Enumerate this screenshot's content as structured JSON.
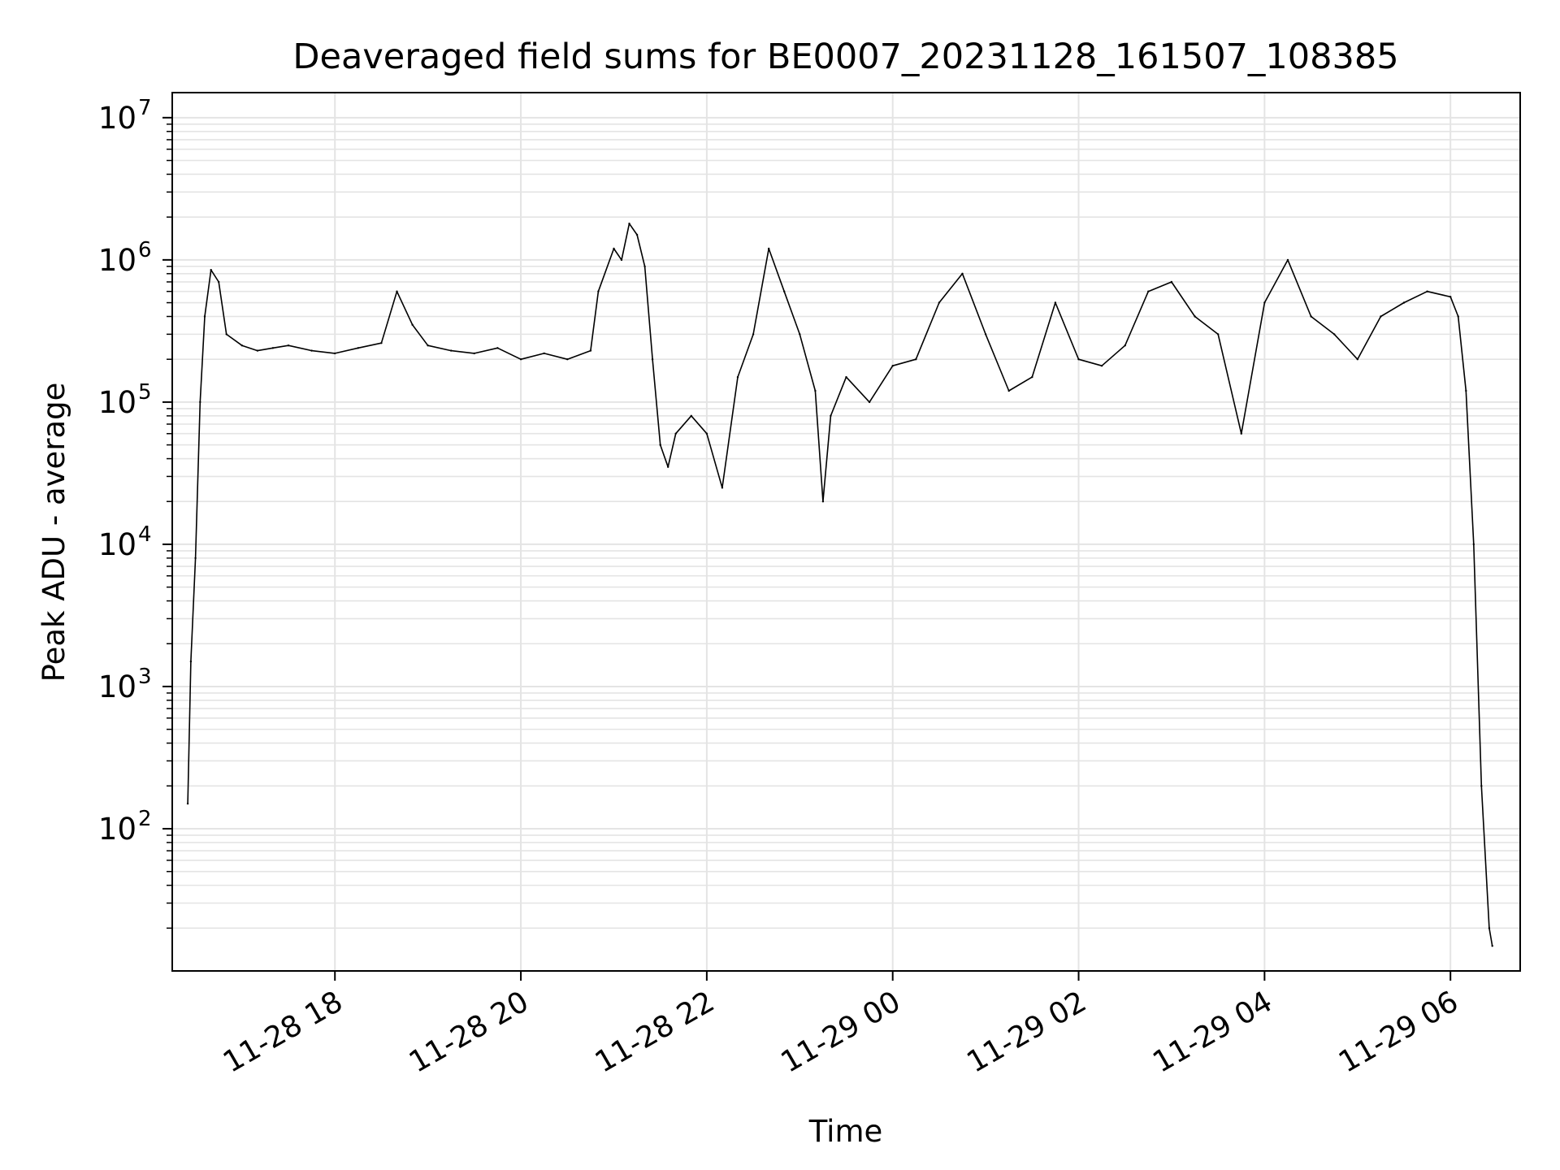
{
  "chart_data": {
    "type": "line",
    "title": "Deaveraged field sums for BE0007_20231128_161507_108385",
    "xlabel": "Time",
    "ylabel": "Peak ADU - average",
    "yscale": "log",
    "ylim": [
      10,
      15000000
    ],
    "xlim": [
      "2023-11-28 16:15",
      "2023-11-29 06:45"
    ],
    "grid": true,
    "line_color": "#000000",
    "grid_color": "#e4e4e4",
    "x_ticks": [
      {
        "x": "2023-11-28 18:00",
        "label": "11-28 18"
      },
      {
        "x": "2023-11-28 20:00",
        "label": "11-28 20"
      },
      {
        "x": "2023-11-28 22:00",
        "label": "11-28 22"
      },
      {
        "x": "2023-11-29 00:00",
        "label": "11-29 00"
      },
      {
        "x": "2023-11-29 02:00",
        "label": "11-29 02"
      },
      {
        "x": "2023-11-29 04:00",
        "label": "11-29 04"
      },
      {
        "x": "2023-11-29 06:00",
        "label": "11-29 06"
      }
    ],
    "y_ticks": [
      {
        "y": 100,
        "base": "10",
        "exp": "2"
      },
      {
        "y": 1000,
        "base": "10",
        "exp": "3"
      },
      {
        "y": 10000,
        "base": "10",
        "exp": "4"
      },
      {
        "y": 100000,
        "base": "10",
        "exp": "5"
      },
      {
        "y": 1000000,
        "base": "10",
        "exp": "6"
      },
      {
        "y": 10000000,
        "base": "10",
        "exp": "7"
      }
    ],
    "series": [
      {
        "x": [
          "2023-11-28 16:25",
          "2023-11-28 16:27",
          "2023-11-28 16:30",
          "2023-11-28 16:33",
          "2023-11-28 16:36",
          "2023-11-28 16:40",
          "2023-11-28 16:45",
          "2023-11-28 16:50",
          "2023-11-28 17:00",
          "2023-11-28 17:10",
          "2023-11-28 17:20",
          "2023-11-28 17:30",
          "2023-11-28 17:45",
          "2023-11-28 18:00",
          "2023-11-28 18:15",
          "2023-11-28 18:30",
          "2023-11-28 18:40",
          "2023-11-28 18:50",
          "2023-11-28 19:00",
          "2023-11-28 19:15",
          "2023-11-28 19:30",
          "2023-11-28 19:45",
          "2023-11-28 20:00",
          "2023-11-28 20:15",
          "2023-11-28 20:30",
          "2023-11-28 20:45",
          "2023-11-28 20:50",
          "2023-11-28 21:00",
          "2023-11-28 21:05",
          "2023-11-28 21:10",
          "2023-11-28 21:15",
          "2023-11-28 21:20",
          "2023-11-28 21:25",
          "2023-11-28 21:30",
          "2023-11-28 21:35",
          "2023-11-28 21:40",
          "2023-11-28 21:50",
          "2023-11-28 22:00",
          "2023-11-28 22:10",
          "2023-11-28 22:20",
          "2023-11-28 22:30",
          "2023-11-28 22:40",
          "2023-11-28 22:50",
          "2023-11-28 23:00",
          "2023-11-28 23:10",
          "2023-11-28 23:15",
          "2023-11-28 23:20",
          "2023-11-28 23:30",
          "2023-11-28 23:45",
          "2023-11-29 00:00",
          "2023-11-29 00:15",
          "2023-11-29 00:30",
          "2023-11-29 00:45",
          "2023-11-29 01:00",
          "2023-11-29 01:15",
          "2023-11-29 01:30",
          "2023-11-29 01:45",
          "2023-11-29 02:00",
          "2023-11-29 02:15",
          "2023-11-29 02:30",
          "2023-11-29 02:45",
          "2023-11-29 03:00",
          "2023-11-29 03:15",
          "2023-11-29 03:30",
          "2023-11-29 03:45",
          "2023-11-29 04:00",
          "2023-11-29 04:15",
          "2023-11-29 04:30",
          "2023-11-29 04:45",
          "2023-11-29 05:00",
          "2023-11-29 05:15",
          "2023-11-29 05:30",
          "2023-11-29 05:45",
          "2023-11-29 06:00",
          "2023-11-29 06:05",
          "2023-11-29 06:10",
          "2023-11-29 06:15",
          "2023-11-29 06:20",
          "2023-11-29 06:25",
          "2023-11-29 06:27"
        ],
        "y": [
          150,
          1500,
          8000,
          100000,
          400000,
          850000,
          700000,
          300000,
          250000,
          230000,
          240000,
          250000,
          230000,
          220000,
          240000,
          260000,
          600000,
          350000,
          250000,
          230000,
          220000,
          240000,
          200000,
          220000,
          200000,
          230000,
          600000,
          1200000,
          1000000,
          1800000,
          1500000,
          900000,
          200000,
          50000,
          35000,
          60000,
          80000,
          60000,
          25000,
          150000,
          300000,
          1200000,
          600000,
          300000,
          120000,
          20000,
          80000,
          150000,
          100000,
          180000,
          200000,
          500000,
          800000,
          300000,
          120000,
          150000,
          500000,
          200000,
          180000,
          250000,
          600000,
          700000,
          400000,
          300000,
          60000,
          500000,
          1000000,
          400000,
          300000,
          200000,
          400000,
          500000,
          600000,
          550000,
          400000,
          120000,
          10000,
          200,
          20,
          15
        ]
      }
    ]
  }
}
